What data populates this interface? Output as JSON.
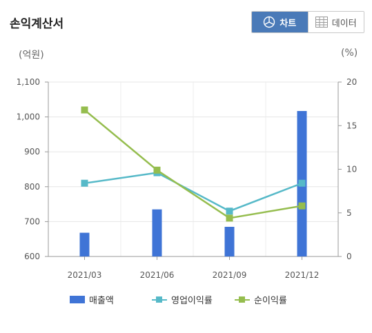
{
  "header": {
    "title": "손익계산서"
  },
  "toggle": {
    "chart_label": "차트",
    "data_label": "데이터"
  },
  "colors": {
    "revenue": "#3f74d6",
    "operating_margin": "#56b9c8",
    "net_margin": "#95bd4e",
    "active_tab": "#4a7ab8"
  },
  "units": {
    "left": "(억원)",
    "right": "(%)"
  },
  "chart_data": {
    "type": "bar",
    "categories": [
      "2021/03",
      "2021/06",
      "2021/09",
      "2021/12"
    ],
    "left_axis": {
      "ylim": [
        600,
        1100
      ],
      "ticks": [
        "600",
        "700",
        "800",
        "900",
        "1,000",
        "1,100"
      ],
      "tick_values": [
        600,
        700,
        800,
        900,
        1000,
        1100
      ]
    },
    "right_axis": {
      "ylim": [
        0,
        20
      ],
      "ticks": [
        "0",
        "5",
        "10",
        "15",
        "20"
      ],
      "tick_values": [
        0,
        5,
        10,
        15,
        20
      ]
    },
    "series": [
      {
        "name": "매출액",
        "type": "bar",
        "axis": "left",
        "values": [
          668,
          735,
          685,
          1017
        ]
      },
      {
        "name": "영업이익률",
        "type": "line",
        "axis": "right",
        "values": [
          8.4,
          9.6,
          5.2,
          8.4
        ]
      },
      {
        "name": "순이익률",
        "type": "line",
        "axis": "right",
        "values": [
          16.8,
          9.9,
          4.4,
          5.8
        ]
      }
    ],
    "grid": true,
    "legend_position": "bottom"
  }
}
